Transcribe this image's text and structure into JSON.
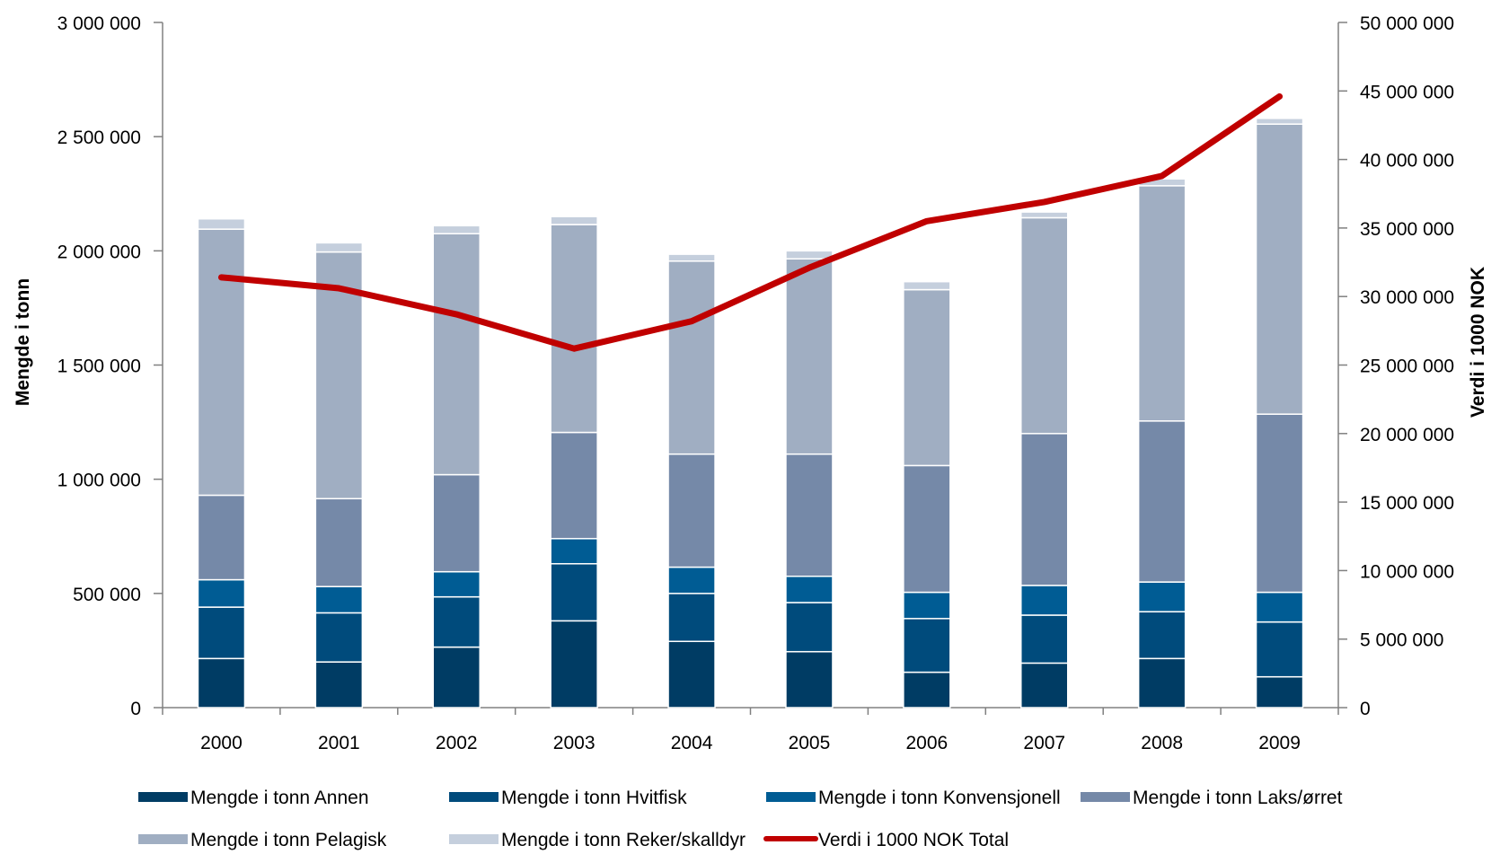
{
  "chart_data": {
    "type": "bar",
    "stacked": true,
    "categories": [
      "2000",
      "2001",
      "2002",
      "2003",
      "2004",
      "2005",
      "2006",
      "2007",
      "2008",
      "2009"
    ],
    "ylabel": "Mengde i tonn",
    "y2label": "Verdi i 1000 NOK",
    "ylim": [
      0,
      3000000
    ],
    "y2lim": [
      0,
      50000000
    ],
    "yticks": [
      "0",
      "500 000",
      "1 000 000",
      "1 500 000",
      "2 000 000",
      "2 500 000",
      "3 000 000"
    ],
    "y2ticks": [
      "0",
      "5 000 000",
      "10 000 000",
      "15 000 000",
      "20 000 000",
      "25 000 000",
      "30 000 000",
      "35 000 000",
      "40 000 000",
      "45 000 000",
      "50 000 000"
    ],
    "series": [
      {
        "name": "Mengde i tonn Annen",
        "color": "#003c64",
        "values": [
          215000,
          200000,
          265000,
          380000,
          290000,
          245000,
          155000,
          195000,
          215000,
          135000
        ]
      },
      {
        "name": "Mengde i tonn Hvitfisk",
        "color": "#004b7c",
        "values": [
          225000,
          215000,
          220000,
          250000,
          210000,
          215000,
          235000,
          210000,
          205000,
          240000
        ]
      },
      {
        "name": "Mengde i tonn Konvensjonell",
        "color": "#005c94",
        "values": [
          120000,
          115000,
          110000,
          110000,
          115000,
          115000,
          115000,
          130000,
          130000,
          130000
        ]
      },
      {
        "name": "Mengde i tonn Laks/ørret",
        "color": "#7589a8",
        "values": [
          370000,
          385000,
          425000,
          465000,
          495000,
          535000,
          555000,
          665000,
          705000,
          780000
        ]
      },
      {
        "name": "Mengde i tonn Pelagisk",
        "color": "#a0aec2",
        "values": [
          1165000,
          1080000,
          1055000,
          910000,
          845000,
          855000,
          770000,
          945000,
          1030000,
          1270000
        ]
      },
      {
        "name": "Mengde i tonn Reker/skalldyr",
        "color": "#c5cfdd",
        "values": [
          45000,
          40000,
          35000,
          35000,
          30000,
          35000,
          35000,
          25000,
          30000,
          25000
        ]
      }
    ],
    "line": {
      "name": "Verdi i 1000 NOK Total",
      "color": "#c00000",
      "axis": "right",
      "values": [
        31400000,
        30600000,
        28700000,
        26200000,
        28200000,
        32100000,
        35500000,
        36900000,
        38800000,
        44600000
      ]
    },
    "legend_position": "bottom",
    "grid": false
  }
}
